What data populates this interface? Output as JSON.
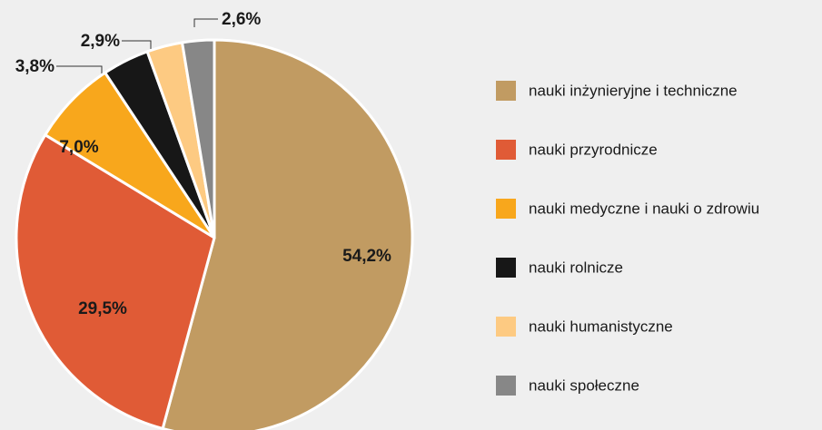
{
  "chart_data": {
    "type": "pie",
    "categories": [
      "nauki inżynieryjne i techniczne",
      "nauki przyrodnicze",
      "nauki medyczne i nauki o zdrowiu",
      "nauki rolnicze",
      "nauki humanistyczne",
      "nauki społeczne"
    ],
    "values": [
      54.2,
      29.5,
      7.0,
      3.8,
      2.9,
      2.6
    ],
    "value_labels": [
      "54,2%",
      "29,5%",
      "7,0%",
      "3,8%",
      "2,9%",
      "2,6%"
    ],
    "colors": [
      "#c19b62",
      "#e05b36",
      "#f8a71c",
      "#171717",
      "#fdca82",
      "#878787"
    ]
  }
}
